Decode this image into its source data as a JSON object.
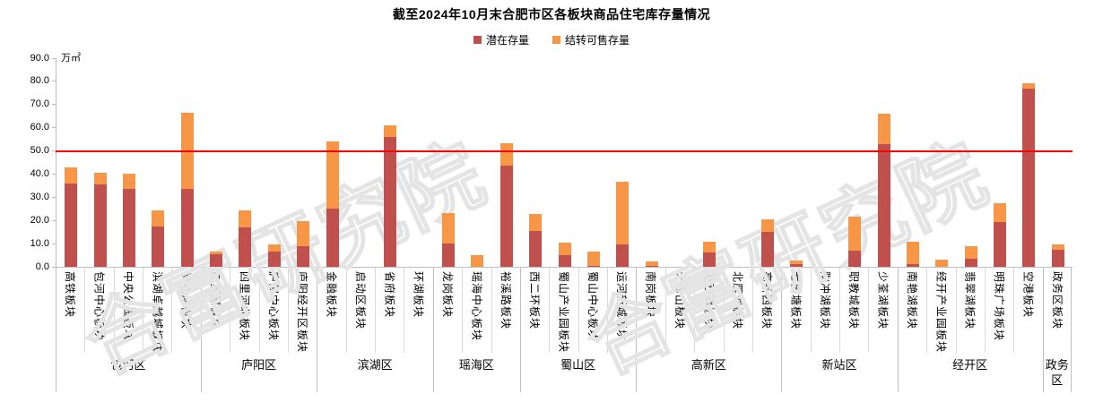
{
  "title": "截至2024年10月末合肥市区各板块商品住宅库存量情况",
  "unit_label": "万㎡",
  "watermark_text": "合富研究院",
  "colors": {
    "potential_series": "#C0504D",
    "carryover_series": "#F79646",
    "reference_line": "#FE0000",
    "axis_gray": "#BFBFBF"
  },
  "chart_data": {
    "type": "bar",
    "stacked": true,
    "title": "截至2024年10月末合肥市区各板块商品住宅库存量情况",
    "value_unit": "万㎡",
    "ylim": [
      0,
      90
    ],
    "ytick_step": 10,
    "grid": false,
    "legend_position": "top",
    "reference_line_value": 50,
    "series_order_note": "values = [潜在存量, 结转可售存量] in 万㎡",
    "series": [
      {
        "name": "潜在存量",
        "color": "#C0504D"
      },
      {
        "name": "结转可售存量",
        "color": "#F79646"
      }
    ],
    "groups": [
      {
        "district": "包河区",
        "blocks": [
          {
            "name": "高铁板块",
            "values": [
              36,
              7
            ]
          },
          {
            "name": "包河中心板块",
            "values": [
              35.5,
              5
            ]
          },
          {
            "name": "中央公园板块",
            "values": [
              33.5,
              6.5
            ]
          },
          {
            "name": "滨湖卓越城板块",
            "values": [
              17.5,
              7
            ]
          },
          {
            "name": "南淝河板块",
            "values": [
              33.5,
              33
            ]
          }
        ]
      },
      {
        "district": "庐阳区",
        "blocks": [
          {
            "name": "四里河板块",
            "values": [
              5.5,
              1
            ]
          },
          {
            "name": "四里河北板块",
            "values": [
              17,
              7.5
            ]
          },
          {
            "name": "庐阳中心板块",
            "values": [
              6.5,
              3
            ]
          },
          {
            "name": "庐阳经开区板块",
            "values": [
              9,
              11
            ]
          }
        ]
      },
      {
        "district": "滨湖区",
        "blocks": [
          {
            "name": "金融板块",
            "values": [
              25,
              29
            ]
          },
          {
            "name": "启动区板块",
            "values": [
              0,
              0
            ]
          },
          {
            "name": "省府板块",
            "values": [
              56,
              5
            ]
          },
          {
            "name": "环湖板块",
            "values": [
              0,
              0
            ]
          }
        ]
      },
      {
        "district": "瑶海区",
        "blocks": [
          {
            "name": "龙岗板块",
            "values": [
              10,
              13
            ]
          },
          {
            "name": "瑶海中心板块",
            "values": [
              0,
              5
            ]
          },
          {
            "name": "裕溪路板块",
            "values": [
              43.5,
              9.5
            ]
          }
        ]
      },
      {
        "district": "蜀山区",
        "blocks": [
          {
            "name": "西二环板块",
            "values": [
              15.5,
              7.5
            ]
          },
          {
            "name": "蜀山产业园板块",
            "values": [
              5,
              5.5
            ]
          },
          {
            "name": "蜀山中心板块",
            "values": [
              0.5,
              6
            ]
          },
          {
            "name": "运河新城板块",
            "values": [
              9.5,
              27
            ]
          }
        ]
      },
      {
        "district": "高新区",
        "blocks": [
          {
            "name": "南岗板块",
            "values": [
              0.5,
              2
            ]
          },
          {
            "name": "大蜀山板块",
            "values": [
              0,
              0
            ]
          },
          {
            "name": "蜀西湖板块",
            "values": [
              6,
              4.5
            ]
          },
          {
            "name": "北雁湖板块",
            "values": [
              0,
              0
            ]
          },
          {
            "name": "高新西板块",
            "values": [
              15,
              5.5
            ]
          }
        ]
      },
      {
        "district": "新站区",
        "blocks": [
          {
            "name": "七里塘板块",
            "values": [
              1,
              1.5
            ]
          },
          {
            "name": "陶冲湖板块",
            "values": [
              0,
              0
            ]
          },
          {
            "name": "职教城板块",
            "values": [
              7,
              14.5
            ]
          },
          {
            "name": "少荃湖板块",
            "values": [
              53,
              13
            ]
          }
        ]
      },
      {
        "district": "经开区",
        "blocks": [
          {
            "name": "南艳湖板块",
            "values": [
              1,
              9.5
            ]
          },
          {
            "name": "经开产业园板块",
            "values": [
              0,
              3
            ]
          },
          {
            "name": "翡翠湖板块",
            "values": [
              3.5,
              5.5
            ]
          },
          {
            "name": "明珠广场板块",
            "values": [
              19.5,
              8
            ]
          },
          {
            "name": "空港板块",
            "values": [
              77,
              2.5
            ]
          }
        ]
      },
      {
        "district": "政务区",
        "blocks": [
          {
            "name": "政务区板块",
            "values": [
              7.5,
              2.5
            ]
          }
        ]
      }
    ]
  }
}
